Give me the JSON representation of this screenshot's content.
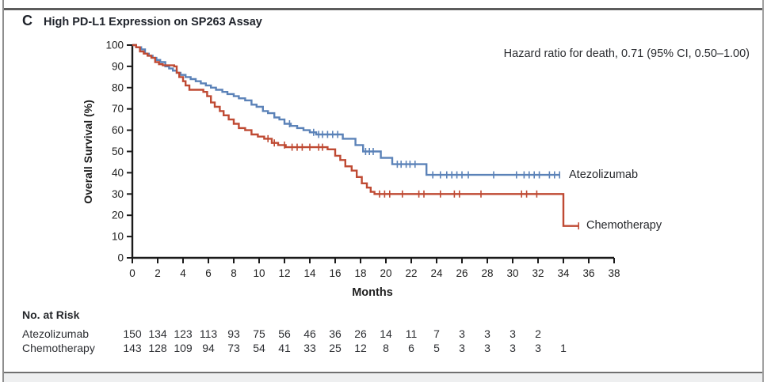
{
  "figure": {
    "panel_label": "C",
    "title": "High PD-L1 Expression on SP263 Assay",
    "annotation": "Hazard ratio for death, 0.71 (95% CI, 0.50–1.00)"
  },
  "chart_data": {
    "type": "line",
    "subtype": "kaplan-meier-step",
    "title": "High PD-L1 Expression on SP263 Assay",
    "xlabel": "Months",
    "ylabel": "Overall Survival (%)",
    "xlim": [
      0,
      38
    ],
    "ylim": [
      0,
      100
    ],
    "xticks": [
      0,
      2,
      4,
      6,
      8,
      10,
      12,
      14,
      16,
      18,
      20,
      22,
      24,
      26,
      28,
      30,
      32,
      34,
      36,
      38
    ],
    "yticks": [
      0,
      10,
      20,
      30,
      40,
      50,
      60,
      70,
      80,
      90,
      100
    ],
    "grid": false,
    "legend_position": "labels-at-line-ends",
    "axis_color": "#1a1a1a",
    "series": [
      {
        "name": "Atezolizumab",
        "color": "#5b82b8",
        "points": [
          [
            0,
            100
          ],
          [
            0.3,
            99
          ],
          [
            0.7,
            98
          ],
          [
            1.0,
            96
          ],
          [
            1.3,
            95
          ],
          [
            1.6,
            94
          ],
          [
            1.9,
            93
          ],
          [
            2.2,
            92
          ],
          [
            2.6,
            90
          ],
          [
            2.9,
            89
          ],
          [
            3.2,
            88
          ],
          [
            3.5,
            87
          ],
          [
            3.8,
            86
          ],
          [
            4.2,
            85
          ],
          [
            4.6,
            84
          ],
          [
            5.0,
            83
          ],
          [
            5.4,
            82
          ],
          [
            5.8,
            81
          ],
          [
            6.2,
            80
          ],
          [
            6.6,
            79
          ],
          [
            7.1,
            78
          ],
          [
            7.5,
            77
          ],
          [
            8.0,
            76
          ],
          [
            8.4,
            75
          ],
          [
            8.9,
            74
          ],
          [
            9.4,
            72
          ],
          [
            9.8,
            71
          ],
          [
            10.3,
            69
          ],
          [
            10.7,
            68
          ],
          [
            11.2,
            66
          ],
          [
            11.6,
            65
          ],
          [
            12.0,
            63
          ],
          [
            12.5,
            62
          ],
          [
            13.0,
            61
          ],
          [
            13.5,
            60
          ],
          [
            14.0,
            59
          ],
          [
            14.5,
            58
          ],
          [
            16.6,
            56
          ],
          [
            17.6,
            53
          ],
          [
            18.2,
            50
          ],
          [
            19.6,
            47
          ],
          [
            20.5,
            44
          ],
          [
            23.2,
            39
          ],
          [
            33.7,
            39
          ]
        ],
        "censor_marks": [
          12.4,
          14.3,
          14.7,
          15.0,
          15.4,
          15.8,
          16.2,
          18.4,
          18.7,
          19.0,
          20.9,
          21.2,
          21.6,
          21.9,
          22.3,
          23.7,
          24.3,
          24.8,
          25.2,
          25.6,
          26.0,
          26.5,
          28.5,
          30.3,
          30.9,
          31.3,
          31.7,
          32.1,
          32.9,
          33.3,
          33.7
        ]
      },
      {
        "name": "Chemotherapy",
        "color": "#bf4a33",
        "points": [
          [
            0,
            100
          ],
          [
            0.3,
            99
          ],
          [
            0.6,
            97
          ],
          [
            0.9,
            96
          ],
          [
            1.2,
            95
          ],
          [
            1.5,
            94
          ],
          [
            1.8,
            92
          ],
          [
            2.1,
            91
          ],
          [
            2.4,
            90.5
          ],
          [
            3.3,
            90
          ],
          [
            3.5,
            87
          ],
          [
            3.7,
            85
          ],
          [
            4.0,
            83
          ],
          [
            4.2,
            81
          ],
          [
            4.5,
            79
          ],
          [
            5.6,
            78
          ],
          [
            5.9,
            76
          ],
          [
            6.2,
            73
          ],
          [
            6.5,
            71
          ],
          [
            6.9,
            69
          ],
          [
            7.2,
            67
          ],
          [
            7.6,
            65
          ],
          [
            8.0,
            63
          ],
          [
            8.4,
            61
          ],
          [
            8.9,
            60
          ],
          [
            9.4,
            58
          ],
          [
            9.9,
            57
          ],
          [
            10.4,
            56
          ],
          [
            11.0,
            54
          ],
          [
            11.5,
            53
          ],
          [
            12.1,
            52
          ],
          [
            15.4,
            51
          ],
          [
            16.0,
            48
          ],
          [
            16.4,
            46
          ],
          [
            16.8,
            43
          ],
          [
            17.3,
            41
          ],
          [
            17.7,
            38
          ],
          [
            18.1,
            35
          ],
          [
            18.5,
            33
          ],
          [
            18.8,
            31
          ],
          [
            19.1,
            30
          ],
          [
            34.0,
            15
          ],
          [
            35.2,
            15
          ]
        ],
        "censor_marks": [
          10.7,
          11.2,
          12.0,
          12.6,
          13.0,
          13.4,
          14.0,
          14.7,
          15.0,
          19.5,
          19.9,
          20.3,
          21.3,
          22.6,
          23.0,
          24.3,
          25.4,
          25.8,
          27.5,
          30.7,
          31.1,
          31.9,
          35.2
        ]
      }
    ]
  },
  "no_at_risk": {
    "heading": "No. at Risk",
    "month_step": 2,
    "rows": [
      {
        "label": "Atezolizumab",
        "values": [
          150,
          134,
          123,
          113,
          93,
          75,
          56,
          46,
          36,
          26,
          14,
          11,
          7,
          3,
          3,
          3,
          2
        ]
      },
      {
        "label": "Chemotherapy",
        "values": [
          143,
          128,
          109,
          94,
          73,
          54,
          41,
          33,
          25,
          12,
          8,
          6,
          5,
          3,
          3,
          3,
          3,
          1
        ]
      }
    ]
  }
}
